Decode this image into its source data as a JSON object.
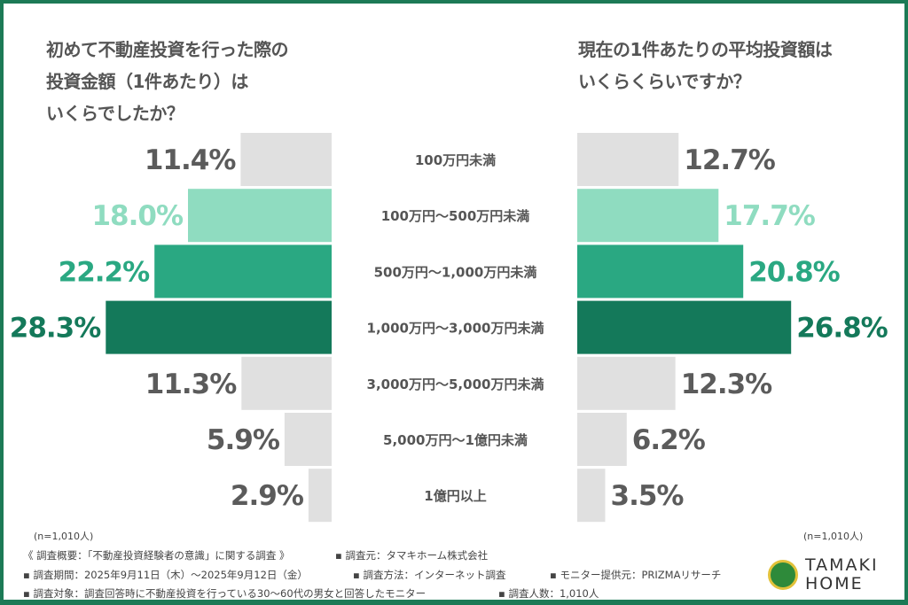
{
  "chart_data": [
    {
      "type": "bar",
      "orientation": "horizontal",
      "direction": "leftward",
      "title": "初めて不動産投資を行った際の投資金額（1件あたり）はいくらでしたか？",
      "categories": [
        "100万円未満",
        "100万円～500万円未満",
        "500万円～1,000万円未満",
        "1,000万円～3,000万円未満",
        "3,000万円～5,000万円未満",
        "5,000万円～1億円未満",
        "1億円以上"
      ],
      "values": [
        11.4,
        18.0,
        22.2,
        28.3,
        11.3,
        5.9,
        2.9
      ],
      "labels": [
        "11.4%",
        "18.0%",
        "22.2%",
        "28.3%",
        "11.3%",
        "5.9%",
        "2.9%"
      ],
      "note": "(n=1,010人)"
    },
    {
      "type": "bar",
      "orientation": "horizontal",
      "direction": "rightward",
      "title": "現在の1件あたりの平均投資額はいくらくらいですか？",
      "categories": [
        "100万円未満",
        "100万円～500万円未満",
        "500万円～1,000万円未満",
        "1,000万円～3,000万円未満",
        "3,000万円～5,000万円未満",
        "5,000万円～1億円未満",
        "1億円以上"
      ],
      "values": [
        12.7,
        17.7,
        20.8,
        26.8,
        12.3,
        6.2,
        3.5
      ],
      "labels": [
        "12.7%",
        "17.7%",
        "20.8%",
        "26.8%",
        "12.3%",
        "6.2%",
        "3.5%"
      ],
      "note": "(n=1,010人)"
    }
  ],
  "colors": {
    "gray": "#e0e0e0",
    "light": "#8fdcc0",
    "mid": "#2aa882",
    "dark": "#14795a",
    "text_gray": "#5b5b5b",
    "light_text": "#8fdcc0"
  },
  "bar_color_keys": [
    "gray",
    "light",
    "mid",
    "dark",
    "gray",
    "gray",
    "gray"
  ],
  "titles": {
    "left_lines": [
      "初めて不動産投資を行った際の",
      "投資金額（1件あたり）は",
      "いくらでしたか？"
    ],
    "right_lines": [
      "現在の1件あたりの平均投資額は",
      "いくらくらいですか？"
    ]
  },
  "footer": {
    "line1a": "《 調査概要：「不動産投資経験者の意識」に関する調査 》",
    "line1b": "▪ 調査元：タマキホーム株式会社",
    "line2a": "▪ 調査期間：2025年9月11日（木）～2025年9月12日（金）",
    "line2b": "▪ 調査方法：インターネット調査",
    "line2c": "▪ モニター提供元：PRIZMAリサーチ",
    "line3a": "▪ 調査対象：調査回答時に不動産投資を行っている30～60代の男女と回答したモニター",
    "line3b": "▪ 調査人数：1,010人"
  },
  "logo": {
    "line1": "TAMAKI",
    "line2": "HOME"
  }
}
